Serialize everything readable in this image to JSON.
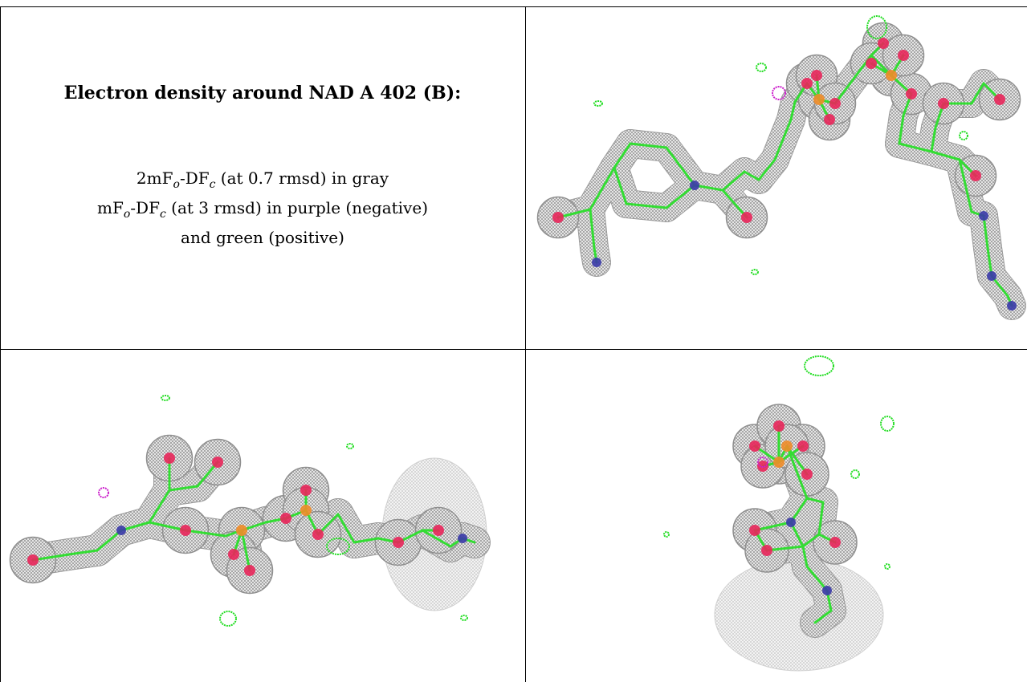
{
  "caption": {
    "title": "Electron density around NAD A 402 (B):",
    "line1_prefix": "2mF",
    "line1_sub1": "o",
    "line1_mid": "-DF",
    "line1_sub2": "c",
    "line1_suffix": " (at 0.7 rmsd) in gray",
    "line2_prefix": "mF",
    "line2_sub1": "o",
    "line2_mid": "-DF",
    "line2_sub2": "c",
    "line2_suffix": " (at 3 rmsd) in purple (negative)",
    "line3": "and green (positive)"
  },
  "colors": {
    "density_mesh": "#8c8c8c",
    "density_fill": "#dcdcdc",
    "carbon_bond": "#33dd33",
    "oxygen": "#e8265a",
    "nitrogen": "#3a3aa8",
    "phosphorus": "#f08c28",
    "negative_density": "#cc22cc",
    "positive_density": "#22dd22"
  }
}
